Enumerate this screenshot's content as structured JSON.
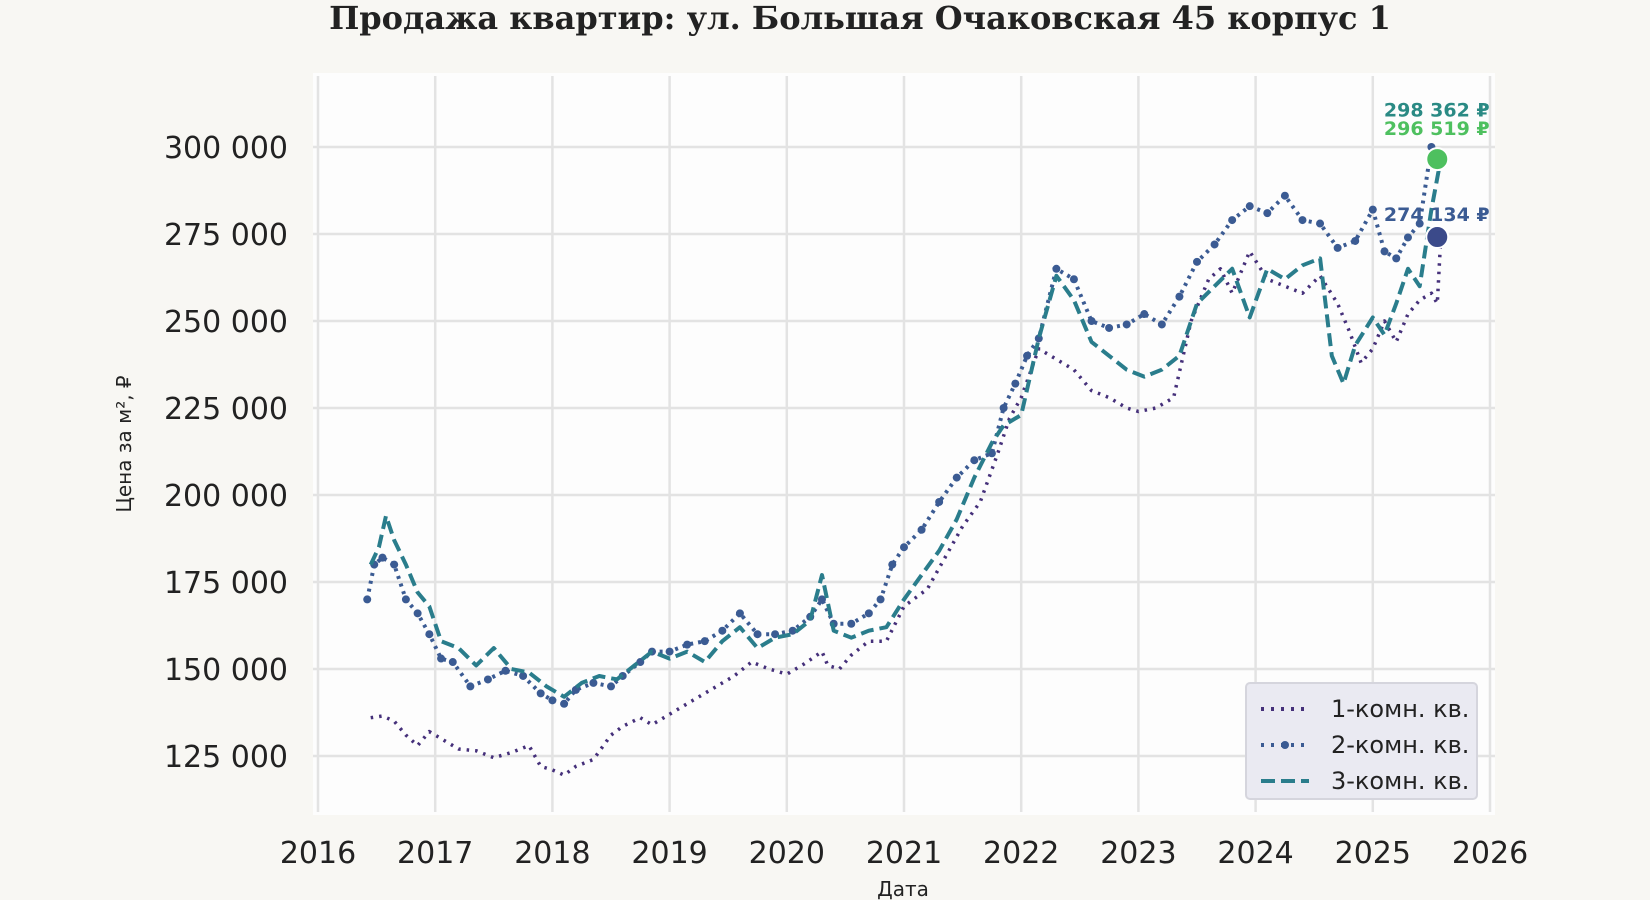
{
  "chart_data": {
    "type": "line",
    "title": "Продажа квартир: ул. Большая Очаковская 45 корпус 1",
    "xlabel": "Дата",
    "ylabel": "Цена за м², ₽",
    "xlim": [
      2016,
      2026
    ],
    "ylim": [
      111000,
      320000
    ],
    "x_ticks": [
      "2016",
      "2017",
      "2018",
      "2019",
      "2020",
      "2021",
      "2022",
      "2023",
      "2024",
      "2025",
      "2026"
    ],
    "y_ticks": [
      "125 000",
      "150 000",
      "175 000",
      "200 000",
      "225 000",
      "250 000",
      "275 000",
      "300 000"
    ],
    "y_tick_values": [
      125000,
      150000,
      175000,
      200000,
      225000,
      250000,
      275000,
      300000
    ],
    "grid": true,
    "legend_position": "lower right",
    "series": [
      {
        "name": "1-комн. кв.",
        "color": "#45307a",
        "style": "dotted",
        "x": [
          2016.45,
          2016.55,
          2016.65,
          2016.75,
          2016.85,
          2016.95,
          2017.05,
          2017.2,
          2017.35,
          2017.5,
          2017.65,
          2017.8,
          2017.9,
          2018.0,
          2018.1,
          2018.2,
          2018.35,
          2018.5,
          2018.6,
          2018.75,
          2018.85,
          2019.0,
          2019.2,
          2019.4,
          2019.55,
          2019.7,
          2019.85,
          2020.0,
          2020.15,
          2020.3,
          2020.35,
          2020.45,
          2020.55,
          2020.7,
          2020.85,
          2021.0,
          2021.2,
          2021.35,
          2021.5,
          2021.65,
          2021.8,
          2021.9,
          2022.0,
          2022.15,
          2022.3,
          2022.45,
          2022.6,
          2022.75,
          2022.9,
          2023.0,
          2023.15,
          2023.3,
          2023.45,
          2023.6,
          2023.7,
          2023.8,
          2023.95,
          2024.1,
          2024.25,
          2024.4,
          2024.55,
          2024.7,
          2024.8,
          2024.9,
          2025.0,
          2025.1,
          2025.2,
          2025.3,
          2025.4,
          2025.5,
          2025.55,
          2025.58
        ],
        "y": [
          136000,
          136500,
          135000,
          131000,
          128000,
          132000,
          130000,
          127000,
          126500,
          124500,
          126000,
          128000,
          122000,
          121000,
          119500,
          122000,
          124000,
          131000,
          133500,
          136000,
          134000,
          137000,
          141000,
          145000,
          148000,
          152000,
          150000,
          148500,
          151500,
          155000,
          151000,
          150000,
          154000,
          158000,
          158000,
          168000,
          173000,
          182000,
          191000,
          198000,
          212000,
          222000,
          228000,
          242000,
          239000,
          236000,
          230000,
          228000,
          225000,
          224000,
          225000,
          228000,
          250000,
          262000,
          265000,
          258000,
          270000,
          262000,
          260000,
          258000,
          263000,
          255000,
          247000,
          238000,
          242000,
          250000,
          244000,
          252000,
          256000,
          258000,
          255000,
          274134
        ]
      },
      {
        "name": "2-комн. кв.",
        "color": "#3b5b93",
        "style": "dotted-marker",
        "x": [
          2016.42,
          2016.48,
          2016.55,
          2016.65,
          2016.75,
          2016.85,
          2016.95,
          2017.05,
          2017.15,
          2017.3,
          2017.45,
          2017.6,
          2017.75,
          2017.9,
          2018.0,
          2018.1,
          2018.2,
          2018.35,
          2018.5,
          2018.6,
          2018.75,
          2018.85,
          2019.0,
          2019.15,
          2019.3,
          2019.45,
          2019.6,
          2019.75,
          2019.9,
          2020.05,
          2020.2,
          2020.3,
          2020.4,
          2020.55,
          2020.7,
          2020.8,
          2020.9,
          2021.0,
          2021.15,
          2021.3,
          2021.45,
          2021.6,
          2021.75,
          2021.85,
          2021.95,
          2022.05,
          2022.15,
          2022.3,
          2022.45,
          2022.6,
          2022.75,
          2022.9,
          2023.05,
          2023.2,
          2023.35,
          2023.5,
          2023.65,
          2023.8,
          2023.95,
          2024.1,
          2024.25,
          2024.4,
          2024.55,
          2024.7,
          2024.85,
          2025.0,
          2025.1,
          2025.2,
          2025.3,
          2025.4,
          2025.5,
          2025.55
        ],
        "y": [
          170000,
          180000,
          182000,
          180000,
          170000,
          166000,
          160000,
          153000,
          152000,
          145000,
          147000,
          149500,
          148000,
          143000,
          141000,
          140000,
          144000,
          146000,
          145000,
          148000,
          152000,
          155000,
          155000,
          157000,
          158000,
          161000,
          166000,
          160000,
          160000,
          161000,
          165000,
          170000,
          163000,
          163000,
          166000,
          170000,
          180000,
          185000,
          190000,
          198000,
          205000,
          210000,
          212000,
          225000,
          232000,
          240000,
          245000,
          265000,
          262000,
          250000,
          248000,
          249000,
          252000,
          249000,
          257000,
          267000,
          272000,
          279000,
          283000,
          281000,
          286000,
          279000,
          278000,
          271000,
          273000,
          282000,
          270000,
          268000,
          274000,
          278000,
          300000,
          298362
        ]
      },
      {
        "name": "3-комн. кв.",
        "color": "#2a7d8c",
        "style": "dashed",
        "x": [
          2016.45,
          2016.52,
          2016.58,
          2016.65,
          2016.75,
          2016.85,
          2016.95,
          2017.05,
          2017.2,
          2017.35,
          2017.5,
          2017.65,
          2017.8,
          2017.95,
          2018.1,
          2018.25,
          2018.4,
          2018.55,
          2018.7,
          2018.85,
          2019.0,
          2019.15,
          2019.3,
          2019.45,
          2019.6,
          2019.75,
          2019.9,
          2020.05,
          2020.2,
          2020.3,
          2020.4,
          2020.55,
          2020.7,
          2020.85,
          2021.0,
          2021.15,
          2021.3,
          2021.45,
          2021.6,
          2021.75,
          2021.85,
          2022.0,
          2022.15,
          2022.3,
          2022.45,
          2022.6,
          2022.75,
          2022.9,
          2023.05,
          2023.2,
          2023.35,
          2023.5,
          2023.65,
          2023.8,
          2023.95,
          2024.1,
          2024.25,
          2024.4,
          2024.55,
          2024.65,
          2024.75,
          2024.85,
          2025.0,
          2025.1,
          2025.2,
          2025.3,
          2025.4,
          2025.5,
          2025.58
        ],
        "y": [
          180000,
          185000,
          194000,
          187000,
          180000,
          172000,
          168000,
          158000,
          156000,
          151000,
          156000,
          150000,
          149000,
          145000,
          142000,
          146000,
          148000,
          147000,
          151000,
          155000,
          153000,
          155000,
          152000,
          158000,
          162000,
          156000,
          159000,
          160000,
          164000,
          177000,
          161000,
          159000,
          161000,
          162000,
          170000,
          177000,
          184000,
          193000,
          205000,
          215000,
          220000,
          223000,
          245000,
          263000,
          256000,
          244000,
          240000,
          236000,
          234000,
          236000,
          240000,
          255000,
          260000,
          265000,
          251000,
          265000,
          262000,
          266000,
          268000,
          240000,
          232000,
          243000,
          251000,
          246000,
          255000,
          265000,
          260000,
          282000,
          296519
        ]
      }
    ],
    "annotations": [
      {
        "text": "298 362 ₽",
        "x": 2025.58,
        "y": 298362,
        "color": "#2a8a84"
      },
      {
        "text": "296 519 ₽",
        "x": 2025.58,
        "y": 296519,
        "color": "#4ec05f"
      },
      {
        "text": "274 134 ₽",
        "x": 2025.58,
        "y": 274134,
        "color": "#3b5b93"
      }
    ],
    "endpoint_markers": [
      {
        "x": 2025.55,
        "y": 296519,
        "color": "#4ec05f"
      },
      {
        "x": 2025.55,
        "y": 274134,
        "color": "#3b4a8a"
      }
    ]
  }
}
